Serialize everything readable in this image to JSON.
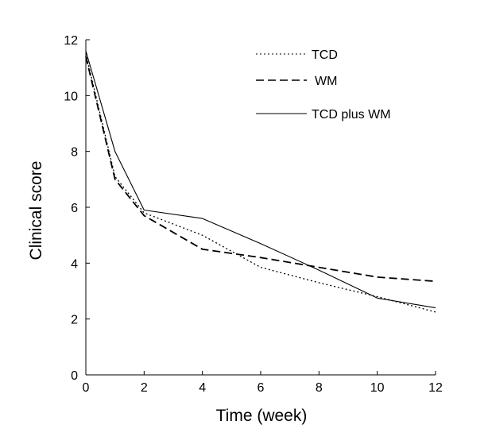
{
  "chart_data": {
    "type": "line",
    "title": "",
    "xlabel": "Time (week)",
    "ylabel": "Clinical score",
    "xlim": [
      0,
      12
    ],
    "ylim": [
      0,
      12
    ],
    "xticks": [
      0,
      2,
      4,
      6,
      8,
      10,
      12
    ],
    "yticks": [
      0,
      2,
      4,
      6,
      8,
      10,
      12
    ],
    "grid": false,
    "legend_position": "top-right",
    "series": [
      {
        "name": "TCD",
        "style": "dotted",
        "color": "#000000",
        "x": [
          0,
          1,
          2,
          4,
          6,
          8,
          10,
          12
        ],
        "y": [
          11.5,
          7.1,
          5.8,
          5.0,
          3.85,
          3.3,
          2.8,
          2.25
        ]
      },
      {
        "name": "WM",
        "style": "dashed",
        "color": "#000000",
        "x": [
          0,
          1,
          2,
          4,
          6,
          8,
          10,
          12
        ],
        "y": [
          11.4,
          7.0,
          5.7,
          4.5,
          4.2,
          3.85,
          3.5,
          3.35
        ]
      },
      {
        "name": "TCD plus WM",
        "style": "solid",
        "color": "#000000",
        "x": [
          0,
          1,
          2,
          4,
          6,
          8,
          10,
          12
        ],
        "y": [
          11.6,
          8.0,
          5.9,
          5.6,
          4.7,
          3.75,
          2.75,
          2.4
        ]
      }
    ]
  }
}
